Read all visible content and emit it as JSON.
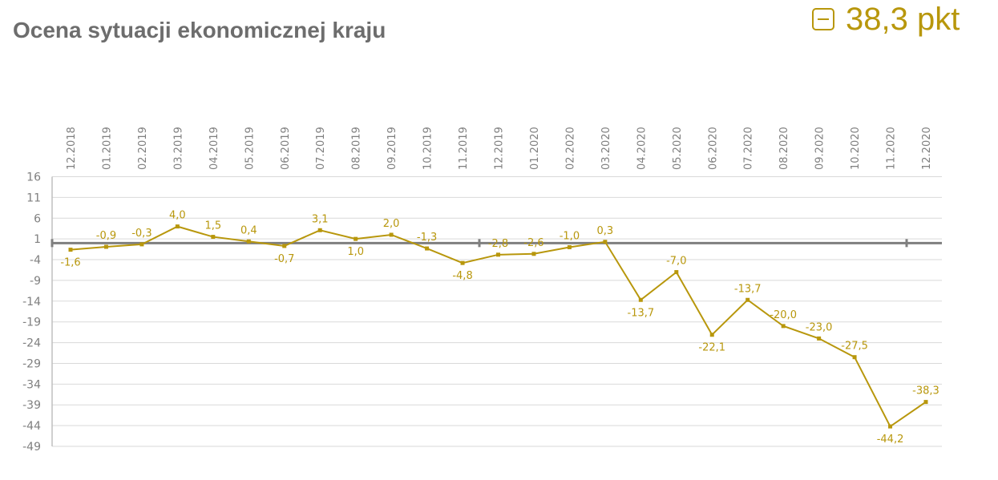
{
  "header": {
    "title": "Ocena sytuacji ekonomicznej kraju",
    "kpi_icon": "minus-box-icon",
    "kpi_value": "38,3 pkt"
  },
  "colors": {
    "series": "#b8970c",
    "label": "#b8970c",
    "axis": "#7f7f7f",
    "grid": "#d9d9d9",
    "tick_text": "#7f7f7f",
    "title": "#6d6d6d"
  },
  "chart_data": {
    "type": "line",
    "title": "Ocena sytuacji ekonomicznej kraju",
    "xlabel": "",
    "ylabel": "",
    "categories": [
      "12.2018",
      "01.2019",
      "02.2019",
      "03.2019",
      "04.2019",
      "05.2019",
      "06.2019",
      "07.2019",
      "08.2019",
      "09.2019",
      "10.2019",
      "11.2019",
      "12.2019",
      "01.2020",
      "02.2020",
      "03.2020",
      "04.2020",
      "05.2020",
      "06.2020",
      "07.2020",
      "08.2020",
      "09.2020",
      "10.2020",
      "11.2020",
      "12.2020"
    ],
    "series": [
      {
        "name": "Ocena sytuacji ekonomicznej kraju",
        "values": [
          -1.6,
          -0.9,
          -0.3,
          4.0,
          1.5,
          0.4,
          -0.7,
          3.1,
          1.0,
          2.0,
          -1.3,
          -4.8,
          -2.8,
          -2.6,
          -1.0,
          0.3,
          -13.7,
          -7.0,
          -22.1,
          -13.7,
          -20.0,
          -23.0,
          -27.5,
          -44.2,
          -38.3
        ],
        "labels": [
          "-1,6",
          "-0,9",
          "-0,3",
          "4,0",
          "1,5",
          "0,4",
          "-0,7",
          "3,1",
          "1,0",
          "2,0",
          "-1,3",
          "-4,8",
          "-2,8",
          "-2,6",
          "-1,0",
          "0,3",
          "-13,7",
          "-7,0",
          "-22,1",
          "-13,7",
          "-20,0",
          "-23,0",
          "-27,5",
          "-44,2",
          "-38,3"
        ]
      }
    ],
    "y_ticks": [
      16,
      11,
      6,
      1,
      -4,
      -9,
      -14,
      -19,
      -24,
      -29,
      -34,
      -39,
      -44,
      -49
    ],
    "ylim": [
      -49,
      16
    ],
    "grid": true,
    "x_axis_position": "top",
    "x_label_rotation": -90,
    "legend": "none"
  }
}
